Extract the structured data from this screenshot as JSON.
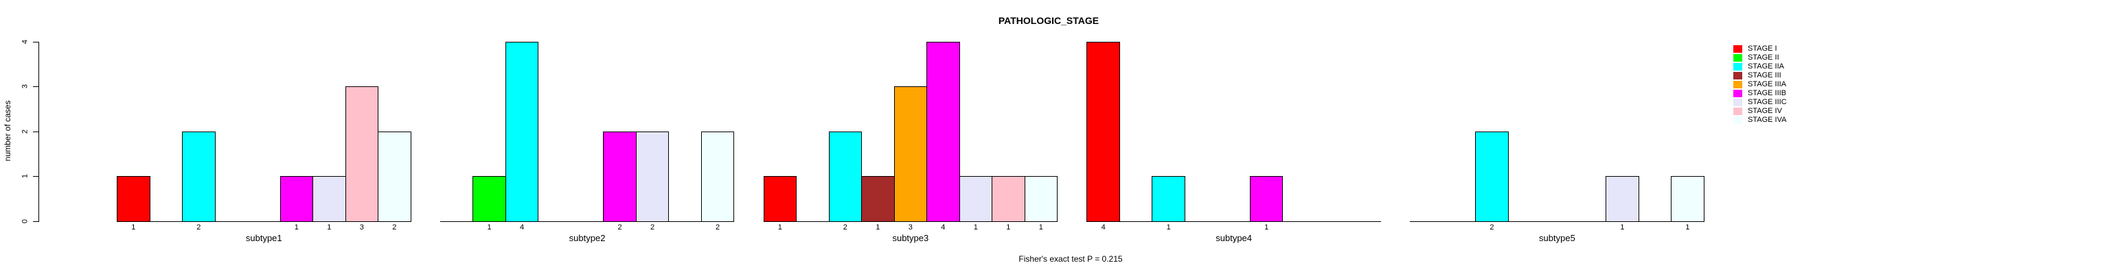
{
  "chart_data": {
    "type": "bar",
    "title": "PATHOLOGIC_STAGE",
    "xlabel": "",
    "ylabel": "number of cases",
    "ylim": [
      0,
      4
    ],
    "yticks": [
      0,
      1,
      2,
      3,
      4
    ],
    "grid": "off",
    "legend_position": "right",
    "annotation": "Fisher's exact test P = 0.215",
    "bar_count_labels": "counts shown under each nonzero bar",
    "categories": [
      "subtype1",
      "subtype2",
      "subtype3",
      "subtype4",
      "subtype5"
    ],
    "series": [
      {
        "name": "STAGE I",
        "color": "#FF0000",
        "values": [
          1,
          0,
          1,
          4,
          0
        ]
      },
      {
        "name": "STAGE II",
        "color": "#00FF00",
        "values": [
          0,
          1,
          0,
          0,
          0
        ]
      },
      {
        "name": "STAGE IIA",
        "color": "#00FFFF",
        "values": [
          2,
          4,
          2,
          1,
          2
        ]
      },
      {
        "name": "STAGE III",
        "color": "#A52A2A",
        "values": [
          0,
          0,
          1,
          0,
          0
        ]
      },
      {
        "name": "STAGE IIIA",
        "color": "#FFA500",
        "values": [
          0,
          0,
          3,
          0,
          0
        ]
      },
      {
        "name": "STAGE IIIB",
        "color": "#FF00FF",
        "values": [
          1,
          2,
          4,
          1,
          0
        ]
      },
      {
        "name": "STAGE IIIC",
        "color": "#E6E6FA",
        "values": [
          1,
          2,
          1,
          0,
          1
        ]
      },
      {
        "name": "STAGE IV",
        "color": "#FFC0CB",
        "values": [
          3,
          0,
          1,
          0,
          0
        ]
      },
      {
        "name": "STAGE IVA",
        "color": "#F0FFFF",
        "values": [
          2,
          2,
          1,
          0,
          1
        ]
      }
    ],
    "axis_color": "#000000",
    "background_color": "#FFFFFF"
  }
}
